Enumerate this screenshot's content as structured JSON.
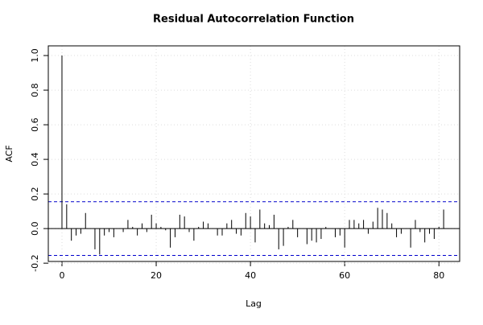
{
  "chart_data": {
    "type": "acf",
    "title": "Residual Autocorrelation Function",
    "x_label": "Lag",
    "y_label": "ACF",
    "x": [
      0,
      1,
      2,
      3,
      4,
      5,
      6,
      7,
      8,
      9,
      10,
      11,
      12,
      13,
      14,
      15,
      16,
      17,
      18,
      19,
      20,
      21,
      22,
      23,
      24,
      25,
      26,
      27,
      28,
      29,
      30,
      31,
      32,
      33,
      34,
      35,
      36,
      37,
      38,
      39,
      40,
      41,
      42,
      43,
      44,
      45,
      46,
      47,
      48,
      49,
      50,
      51,
      52,
      53,
      54,
      55,
      56,
      57,
      58,
      59,
      60,
      61,
      62,
      63,
      64,
      65,
      66,
      67,
      68,
      69,
      70,
      71,
      72,
      73,
      74,
      75,
      76,
      77,
      78,
      79,
      80,
      81
    ],
    "values": [
      1.0,
      0.14,
      -0.07,
      -0.04,
      -0.03,
      0.09,
      0.0,
      -0.12,
      -0.15,
      -0.04,
      -0.02,
      -0.05,
      0.0,
      -0.02,
      0.05,
      0.01,
      -0.04,
      0.03,
      -0.02,
      0.08,
      0.03,
      0.01,
      -0.01,
      -0.11,
      -0.05,
      0.08,
      0.07,
      -0.02,
      -0.07,
      0.01,
      0.04,
      0.03,
      0.0,
      -0.04,
      -0.04,
      0.03,
      0.05,
      -0.03,
      -0.04,
      0.09,
      0.07,
      -0.08,
      0.11,
      0.03,
      0.02,
      0.08,
      -0.12,
      -0.1,
      0.01,
      0.05,
      -0.05,
      0.0,
      -0.09,
      -0.07,
      -0.08,
      -0.06,
      0.01,
      0.0,
      -0.05,
      -0.04,
      -0.11,
      0.05,
      0.05,
      0.03,
      0.05,
      -0.03,
      0.04,
      0.12,
      0.11,
      0.09,
      0.03,
      -0.05,
      -0.03,
      0.0,
      -0.11,
      0.05,
      -0.02,
      -0.08,
      -0.03,
      -0.06,
      0.01,
      0.11
    ],
    "color": "#000000",
    "conf_lines": [
      -0.155,
      0.155
    ],
    "conf_color": "#0000cc",
    "xlim": [
      -2.9,
      84.4
    ],
    "ylim": [
      -0.19,
      1.056
    ],
    "xticks": [
      0,
      20,
      40,
      60,
      80
    ],
    "yticks": [
      -0.2,
      {
        "value": 0,
        "label": "0.0"
      },
      0.2,
      0.4,
      0.6,
      0.8,
      {
        "value": 1,
        "label": "1.0"
      }
    ],
    "grid": true
  }
}
